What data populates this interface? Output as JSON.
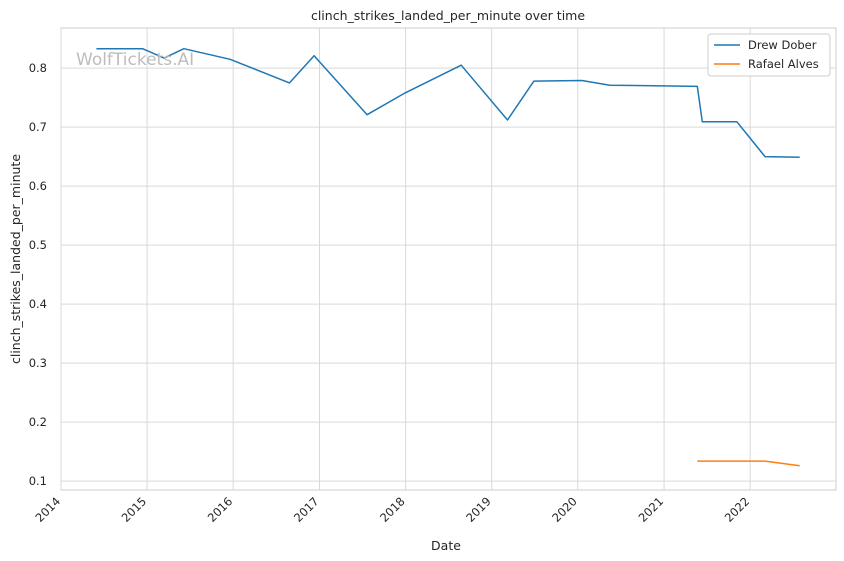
{
  "chart_data": {
    "type": "line",
    "title": "clinch_strikes_landed_per_minute over time",
    "xlabel": "Date",
    "ylabel": "clinch_strikes_landed_per_minute",
    "xlim": [
      "2014-01-01",
      "2022-12-31"
    ],
    "ylim": [
      0.085,
      0.868
    ],
    "x_ticks": [
      "2014",
      "2015",
      "2016",
      "2017",
      "2018",
      "2019",
      "2020",
      "2021",
      "2022"
    ],
    "y_ticks": [
      0.1,
      0.2,
      0.3,
      0.4,
      0.5,
      0.6,
      0.7,
      0.8
    ],
    "grid": true,
    "legend_position": "top-right",
    "watermark": "WolfTickets.AI",
    "series": [
      {
        "name": "Drew Dober",
        "color": "#1f77b4",
        "points": [
          {
            "x": "2014-05-31",
            "y": 0.833
          },
          {
            "x": "2014-12-13",
            "y": 0.833
          },
          {
            "x": "2015-03-14",
            "y": 0.817
          },
          {
            "x": "2015-06-06",
            "y": 0.833
          },
          {
            "x": "2015-12-19",
            "y": 0.815
          },
          {
            "x": "2016-08-27",
            "y": 0.775
          },
          {
            "x": "2016-12-09",
            "y": 0.821
          },
          {
            "x": "2017-07-22",
            "y": 0.721
          },
          {
            "x": "2017-12-30",
            "y": 0.758
          },
          {
            "x": "2018-08-25",
            "y": 0.805
          },
          {
            "x": "2019-03-09",
            "y": 0.712
          },
          {
            "x": "2019-06-29",
            "y": 0.778
          },
          {
            "x": "2020-01-18",
            "y": 0.779
          },
          {
            "x": "2020-05-16",
            "y": 0.771
          },
          {
            "x": "2021-05-22",
            "y": 0.769
          },
          {
            "x": "2021-06-12",
            "y": 0.709
          },
          {
            "x": "2021-11-06",
            "y": 0.709
          },
          {
            "x": "2022-03-05",
            "y": 0.65
          },
          {
            "x": "2022-07-30",
            "y": 0.649
          }
        ]
      },
      {
        "name": "Rafael Alves",
        "color": "#ff7f0e",
        "points": [
          {
            "x": "2021-05-22",
            "y": 0.134
          },
          {
            "x": "2022-03-05",
            "y": 0.134
          },
          {
            "x": "2022-07-30",
            "y": 0.126
          }
        ]
      }
    ]
  }
}
